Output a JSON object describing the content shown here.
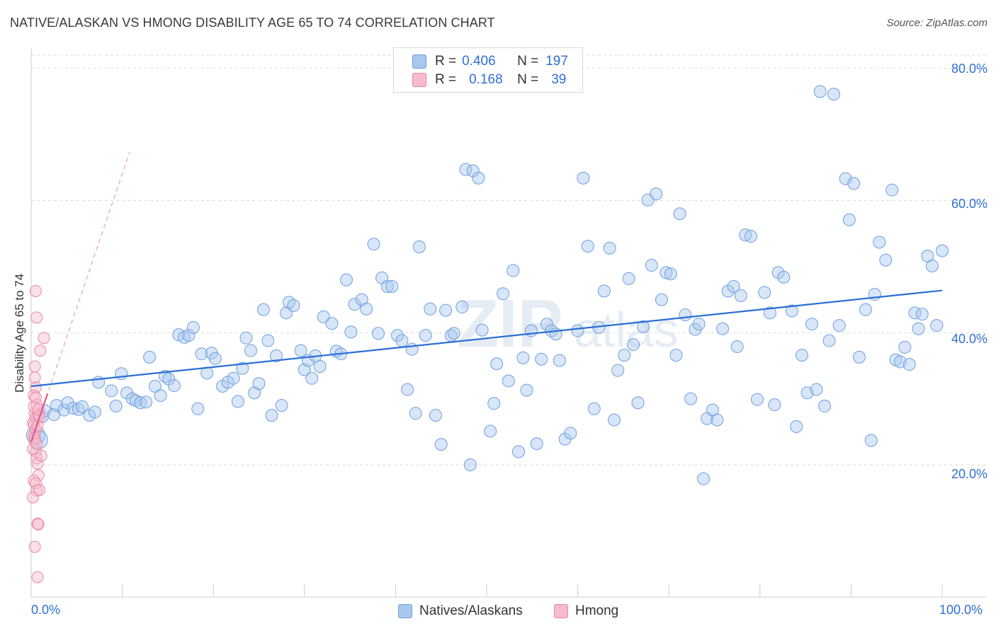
{
  "header": {
    "title": "NATIVE/ALASKAN VS HMONG DISABILITY AGE 65 TO 74 CORRELATION CHART",
    "source": "Source: ZipAtlas.com"
  },
  "colors": {
    "blue_fill": "#a9c7ee",
    "blue_stroke": "#6e9fe0",
    "blue_line": "#2a6fd6",
    "pink_fill": "#f6bccd",
    "pink_stroke": "#e889a6",
    "pink_line": "#e05a85",
    "tick_text": "#2f6fd6"
  },
  "legend": {
    "rows": [
      {
        "r_label": "R =",
        "r_value": "0.406",
        "n_label": "N =",
        "n_value": "197"
      },
      {
        "r_label": "R =",
        "r_value": "0.168",
        "n_label": "N =",
        "n_value": "39"
      }
    ]
  },
  "bottom_legend": {
    "series1": "Natives/Alaskans",
    "series2": "Hmong"
  },
  "chart_data": {
    "type": "scatter",
    "title": "NATIVE/ALASKAN VS HMONG DISABILITY AGE 65 TO 74 CORRELATION CHART",
    "ylabel": "Disability Age 65 to 74",
    "xlabel": "",
    "xlim": [
      0,
      100
    ],
    "ylim": [
      0,
      82
    ],
    "x_tick_labels": [
      "0.0%",
      "100.0%"
    ],
    "y_tick_labels": [
      "20.0%",
      "40.0%",
      "60.0%",
      "80.0%"
    ],
    "y_ticks": [
      20,
      40,
      60,
      80
    ],
    "grid": true,
    "legend_position": "top-center",
    "series": [
      {
        "name": "Natives/Alaskans",
        "r": 0.406,
        "n": 197,
        "trend": {
          "x": [
            0,
            100
          ],
          "y": [
            31.9,
            46.4
          ]
        },
        "points": [
          [
            0.5,
            24.5
          ],
          [
            0.8,
            23.8
          ],
          [
            1.2,
            27.3
          ],
          [
            1.5,
            28.2
          ],
          [
            2.5,
            27.6
          ],
          [
            2.8,
            29.0
          ],
          [
            3.6,
            28.3
          ],
          [
            4.0,
            29.4
          ],
          [
            4.6,
            28.6
          ],
          [
            5.2,
            28.4
          ],
          [
            5.6,
            28.8
          ],
          [
            6.4,
            27.5
          ],
          [
            7.0,
            28.0
          ],
          [
            7.4,
            32.5
          ],
          [
            8.8,
            31.2
          ],
          [
            9.3,
            28.9
          ],
          [
            9.9,
            33.8
          ],
          [
            10.5,
            30.9
          ],
          [
            11.1,
            30.0
          ],
          [
            11.5,
            29.7
          ],
          [
            12.0,
            29.4
          ],
          [
            12.6,
            29.5
          ],
          [
            13.0,
            36.3
          ],
          [
            13.6,
            31.9
          ],
          [
            14.2,
            30.5
          ],
          [
            14.7,
            33.4
          ],
          [
            15.1,
            33.0
          ],
          [
            15.7,
            32.0
          ],
          [
            16.2,
            39.7
          ],
          [
            16.8,
            39.3
          ],
          [
            17.3,
            39.6
          ],
          [
            17.8,
            40.8
          ],
          [
            18.3,
            28.5
          ],
          [
            18.7,
            36.8
          ],
          [
            19.3,
            33.9
          ],
          [
            19.8,
            36.9
          ],
          [
            20.2,
            36.1
          ],
          [
            21.0,
            31.9
          ],
          [
            21.6,
            32.5
          ],
          [
            22.2,
            33.1
          ],
          [
            22.7,
            29.6
          ],
          [
            23.2,
            34.6
          ],
          [
            23.6,
            39.2
          ],
          [
            24.1,
            37.3
          ],
          [
            24.5,
            30.9
          ],
          [
            25.0,
            32.3
          ],
          [
            25.5,
            43.5
          ],
          [
            26.0,
            38.8
          ],
          [
            26.4,
            27.5
          ],
          [
            26.9,
            36.5
          ],
          [
            27.5,
            29.0
          ],
          [
            28.0,
            43.0
          ],
          [
            28.3,
            44.6
          ],
          [
            28.8,
            44.1
          ],
          [
            29.6,
            37.3
          ],
          [
            30.0,
            34.4
          ],
          [
            30.4,
            35.8
          ],
          [
            30.8,
            33.1
          ],
          [
            31.2,
            36.5
          ],
          [
            31.7,
            34.9
          ],
          [
            32.1,
            42.4
          ],
          [
            33.0,
            41.4
          ],
          [
            33.5,
            37.2
          ],
          [
            34.0,
            36.8
          ],
          [
            34.6,
            48.0
          ],
          [
            35.1,
            40.1
          ],
          [
            35.5,
            44.3
          ],
          [
            36.3,
            45.0
          ],
          [
            36.8,
            43.6
          ],
          [
            37.6,
            53.4
          ],
          [
            38.1,
            39.9
          ],
          [
            38.5,
            48.3
          ],
          [
            39.1,
            47.0
          ],
          [
            39.6,
            47.0
          ],
          [
            40.2,
            39.6
          ],
          [
            40.7,
            38.8
          ],
          [
            41.3,
            31.4
          ],
          [
            41.8,
            37.5
          ],
          [
            42.2,
            27.8
          ],
          [
            42.6,
            53.0
          ],
          [
            43.3,
            39.6
          ],
          [
            43.8,
            43.6
          ],
          [
            44.4,
            27.5
          ],
          [
            45.0,
            23.1
          ],
          [
            45.5,
            43.4
          ],
          [
            46.1,
            39.6
          ],
          [
            46.4,
            39.9
          ],
          [
            47.3,
            43.9
          ],
          [
            47.7,
            64.7
          ],
          [
            48.2,
            20.0
          ],
          [
            48.5,
            64.5
          ],
          [
            49.1,
            63.4
          ],
          [
            49.5,
            40.4
          ],
          [
            50.4,
            25.1
          ],
          [
            50.8,
            29.3
          ],
          [
            51.1,
            35.3
          ],
          [
            51.8,
            45.9
          ],
          [
            52.4,
            32.7
          ],
          [
            52.9,
            49.4
          ],
          [
            53.5,
            22.0
          ],
          [
            54.0,
            36.2
          ],
          [
            54.4,
            31.3
          ],
          [
            54.9,
            40.3
          ],
          [
            55.5,
            23.2
          ],
          [
            56.0,
            36.0
          ],
          [
            56.6,
            41.3
          ],
          [
            57.1,
            40.3
          ],
          [
            57.6,
            39.8
          ],
          [
            58.0,
            35.8
          ],
          [
            58.6,
            23.9
          ],
          [
            59.2,
            24.8
          ],
          [
            60.0,
            40.3
          ],
          [
            60.6,
            63.4
          ],
          [
            61.1,
            53.1
          ],
          [
            61.8,
            28.5
          ],
          [
            62.3,
            40.8
          ],
          [
            62.9,
            46.3
          ],
          [
            63.5,
            52.8
          ],
          [
            64.0,
            26.8
          ],
          [
            64.4,
            34.3
          ],
          [
            65.1,
            36.6
          ],
          [
            65.6,
            48.2
          ],
          [
            66.1,
            38.2
          ],
          [
            66.6,
            29.4
          ],
          [
            67.2,
            40.9
          ],
          [
            67.7,
            60.1
          ],
          [
            68.1,
            50.2
          ],
          [
            68.6,
            61.0
          ],
          [
            69.2,
            45.0
          ],
          [
            69.7,
            49.1
          ],
          [
            70.2,
            48.9
          ],
          [
            70.8,
            36.6
          ],
          [
            71.2,
            58.0
          ],
          [
            71.8,
            42.7
          ],
          [
            72.4,
            30.0
          ],
          [
            72.9,
            40.5
          ],
          [
            73.3,
            41.3
          ],
          [
            73.8,
            17.9
          ],
          [
            74.2,
            27.0
          ],
          [
            74.8,
            28.3
          ],
          [
            75.3,
            26.8
          ],
          [
            75.9,
            40.6
          ],
          [
            76.5,
            46.3
          ],
          [
            77.1,
            47.0
          ],
          [
            77.5,
            37.9
          ],
          [
            77.9,
            45.6
          ],
          [
            78.4,
            54.8
          ],
          [
            79.0,
            54.6
          ],
          [
            79.7,
            29.9
          ],
          [
            80.5,
            46.1
          ],
          [
            81.1,
            43.0
          ],
          [
            81.6,
            29.1
          ],
          [
            82.0,
            49.1
          ],
          [
            82.6,
            48.4
          ],
          [
            83.5,
            43.3
          ],
          [
            84.0,
            25.8
          ],
          [
            84.6,
            36.6
          ],
          [
            85.2,
            30.9
          ],
          [
            85.7,
            41.3
          ],
          [
            86.2,
            31.4
          ],
          [
            86.6,
            76.5
          ],
          [
            87.1,
            28.9
          ],
          [
            87.6,
            38.8
          ],
          [
            88.1,
            76.1
          ],
          [
            88.7,
            41.1
          ],
          [
            89.4,
            63.3
          ],
          [
            89.8,
            57.1
          ],
          [
            90.3,
            62.6
          ],
          [
            90.9,
            36.3
          ],
          [
            91.6,
            43.5
          ],
          [
            92.2,
            23.7
          ],
          [
            92.6,
            45.8
          ],
          [
            93.1,
            53.7
          ],
          [
            93.8,
            51.0
          ],
          [
            94.5,
            61.6
          ],
          [
            94.9,
            35.9
          ],
          [
            95.4,
            35.6
          ],
          [
            95.9,
            37.8
          ],
          [
            96.4,
            35.2
          ],
          [
            97.0,
            43.0
          ],
          [
            97.4,
            40.6
          ],
          [
            97.8,
            42.8
          ],
          [
            98.4,
            51.6
          ],
          [
            98.9,
            50.1
          ],
          [
            99.4,
            41.1
          ],
          [
            100.0,
            52.4
          ]
        ]
      },
      {
        "name": "Hmong",
        "r": 0.168,
        "n": 39,
        "trend": {
          "x": [
            0,
            1.8
          ],
          "y": [
            23.5,
            30.8
          ]
        },
        "points": [
          [
            0.2,
            26.4
          ],
          [
            0.3,
            24.5
          ],
          [
            0.4,
            23.6
          ],
          [
            0.5,
            22.0
          ],
          [
            0.6,
            21.0
          ],
          [
            0.7,
            20.2
          ],
          [
            0.8,
            18.4
          ],
          [
            0.3,
            17.6
          ],
          [
            0.5,
            17.2
          ],
          [
            0.6,
            16.1
          ],
          [
            0.2,
            15.1
          ],
          [
            0.9,
            16.2
          ],
          [
            0.7,
            11.1
          ],
          [
            0.8,
            11.0
          ],
          [
            0.4,
            7.6
          ],
          [
            0.7,
            3.0
          ],
          [
            0.5,
            46.3
          ],
          [
            0.6,
            42.3
          ],
          [
            1.4,
            39.2
          ],
          [
            1.0,
            37.3
          ],
          [
            0.4,
            33.2
          ],
          [
            0.5,
            31.7
          ],
          [
            0.3,
            30.5
          ],
          [
            0.6,
            29.1
          ],
          [
            0.4,
            27.8
          ],
          [
            0.5,
            27.1
          ],
          [
            0.8,
            27.6
          ],
          [
            0.3,
            26.0
          ],
          [
            0.5,
            25.3
          ],
          [
            0.4,
            24.1
          ],
          [
            0.2,
            22.4
          ],
          [
            0.6,
            23.2
          ],
          [
            0.7,
            25.9
          ],
          [
            0.9,
            27.3
          ],
          [
            0.3,
            28.8
          ],
          [
            0.5,
            30.2
          ],
          [
            1.1,
            21.4
          ],
          [
            0.4,
            34.9
          ],
          [
            0.8,
            28.4
          ]
        ]
      }
    ]
  }
}
